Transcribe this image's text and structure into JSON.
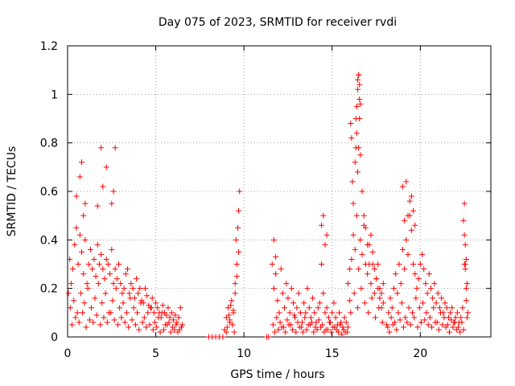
{
  "chart_data": {
    "type": "scatter",
    "title": "Day 075 of 2023, SRMTID for receiver rvdi",
    "xlabel": "GPS time / hours",
    "ylabel": "SRMTID / TECUs",
    "xlim": [
      0,
      24
    ],
    "ylim": [
      0,
      1.2
    ],
    "x_ticks": [
      0,
      5,
      10,
      15,
      20
    ],
    "x_tick_labels": [
      "0",
      "5",
      "10",
      "15",
      "20"
    ],
    "y_ticks": [
      0,
      0.2,
      0.4,
      0.6,
      0.8,
      1,
      1.2
    ],
    "y_tick_labels": [
      "0",
      "0.2",
      "0.4",
      "0.6",
      "0.8",
      "1",
      "1.2"
    ],
    "grid": true,
    "marker": "plus",
    "marker_color": "#ff0000",
    "series": [
      {
        "name": "rvdi",
        "x": [
          0.05,
          0.12,
          0.2,
          0.3,
          0.4,
          0.5,
          0.6,
          0.7,
          0.8,
          0.9,
          1.0,
          1.1,
          1.2,
          1.3,
          1.4,
          1.5,
          1.6,
          1.7,
          1.8,
          1.9,
          2.0,
          2.1,
          2.2,
          2.3,
          2.4,
          2.5,
          2.6,
          2.7,
          2.8,
          2.9,
          3.0,
          3.1,
          3.2,
          3.3,
          3.4,
          3.5,
          3.6,
          3.7,
          3.8,
          3.9,
          4.0,
          4.1,
          4.2,
          4.3,
          4.4,
          4.5,
          4.6,
          4.7,
          4.8,
          4.9,
          5.0,
          5.1,
          5.2,
          5.3,
          5.4,
          5.5,
          5.6,
          5.7,
          5.8,
          5.9,
          6.0,
          6.1,
          6.2,
          6.3,
          6.4,
          6.5,
          0.15,
          0.35,
          0.55,
          0.75,
          0.95,
          1.15,
          1.35,
          1.55,
          1.75,
          1.95,
          2.15,
          2.35,
          2.55,
          2.75,
          2.95,
          3.15,
          3.35,
          3.55,
          3.75,
          3.95,
          4.15,
          4.35,
          4.55,
          4.75,
          4.95,
          5.15,
          5.35,
          5.55,
          5.75,
          5.95,
          6.15,
          6.35,
          0.25,
          0.45,
          0.65,
          0.85,
          1.05,
          1.25,
          1.45,
          1.65,
          1.85,
          2.05,
          2.25,
          2.45,
          2.65,
          2.85,
          3.05,
          3.25,
          3.45,
          3.65,
          3.85,
          4.05,
          4.25,
          4.45,
          4.65,
          4.85,
          5.05,
          5.25,
          5.45,
          5.65,
          5.85,
          6.05,
          6.25,
          6.45,
          0.5,
          0.8,
          1.0,
          1.9,
          2.0,
          2.2,
          2.5,
          2.7,
          0.7,
          0.9,
          1.7,
          2.6,
          8.0,
          8.2,
          8.4,
          8.6,
          8.8,
          8.9,
          9.0,
          9.1,
          9.2,
          9.3,
          9.4,
          9.5,
          9.6,
          9.7,
          9.65,
          9.7,
          9.75,
          9.6,
          9.5,
          9.55,
          9.05,
          9.15,
          9.25,
          9.35,
          9.45,
          9.0,
          9.2,
          9.4,
          11.3,
          11.4,
          11.6,
          11.7,
          11.8,
          11.9,
          12.0,
          12.1,
          12.2,
          12.3,
          12.4,
          12.5,
          12.6,
          12.7,
          12.8,
          12.9,
          13.0,
          13.1,
          13.2,
          13.3,
          13.4,
          13.5,
          13.6,
          13.7,
          13.8,
          13.9,
          14.0,
          14.1,
          14.2,
          14.3,
          14.4,
          14.5,
          14.6,
          14.7,
          14.8,
          14.9,
          15.0,
          15.1,
          15.2,
          15.3,
          15.4,
          15.5,
          15.6,
          15.7,
          15.8,
          15.9,
          11.65,
          11.85,
          12.05,
          12.25,
          12.45,
          12.65,
          12.85,
          13.05,
          13.25,
          13.45,
          13.65,
          13.85,
          14.05,
          14.25,
          14.45,
          14.65,
          14.85,
          15.05,
          15.25,
          15.45,
          15.65,
          15.85,
          11.75,
          11.95,
          12.15,
          12.35,
          12.55,
          12.75,
          12.95,
          13.15,
          13.35,
          13.55,
          13.75,
          13.95,
          14.15,
          14.35,
          14.55,
          14.75,
          14.95,
          15.15,
          15.35,
          15.55,
          15.75,
          11.7,
          11.8,
          14.4,
          14.5,
          14.6,
          14.7,
          15.9,
          16.0,
          16.05,
          16.1,
          16.15,
          16.2,
          16.3,
          16.35,
          16.4,
          16.45,
          16.5,
          16.55,
          16.6,
          16.7,
          16.8,
          16.9,
          17.0,
          17.1,
          17.2,
          17.3,
          17.4,
          17.5,
          17.6,
          17.7,
          17.8,
          17.9,
          16.0,
          16.1,
          16.2,
          16.3,
          16.4,
          16.5,
          16.6,
          16.7,
          16.8,
          16.9,
          17.0,
          17.1,
          17.2,
          17.3,
          17.4,
          17.5,
          17.6,
          17.7,
          17.8,
          17.9,
          16.05,
          16.25,
          16.45,
          16.65,
          16.85,
          17.05,
          17.25,
          17.45,
          17.65,
          17.85,
          16.45,
          16.5,
          16.55,
          16.4,
          16.35,
          16.5,
          16.45,
          16.55,
          16.6,
          18.1,
          18.2,
          18.3,
          18.4,
          18.5,
          18.6,
          18.7,
          18.8,
          18.9,
          19.0,
          19.1,
          19.2,
          19.3,
          19.4,
          19.5,
          19.6,
          19.7,
          19.8,
          19.9,
          20.0,
          20.1,
          20.2,
          20.3,
          20.4,
          20.5,
          20.6,
          20.7,
          20.8,
          20.9,
          21.0,
          21.1,
          21.2,
          21.3,
          21.4,
          21.5,
          21.6,
          21.7,
          21.8,
          21.9,
          22.0,
          22.1,
          22.2,
          22.3,
          22.4,
          22.5,
          22.6,
          22.7,
          18.15,
          18.35,
          18.55,
          18.75,
          18.95,
          19.15,
          19.35,
          19.55,
          19.75,
          19.95,
          20.15,
          20.35,
          20.55,
          20.75,
          20.95,
          21.15,
          21.35,
          21.55,
          21.75,
          21.95,
          22.15,
          22.35,
          22.55,
          18.25,
          18.45,
          18.65,
          18.85,
          19.05,
          19.25,
          19.45,
          19.65,
          19.85,
          20.05,
          20.25,
          20.45,
          20.65,
          20.85,
          21.05,
          21.25,
          21.45,
          21.65,
          21.85,
          22.05,
          22.25,
          22.45,
          22.65,
          19.0,
          19.2,
          19.4,
          19.5,
          19.6,
          19.7,
          19.1,
          19.3,
          22.45,
          22.5,
          22.55,
          22.6,
          22.5,
          22.55,
          22.6,
          22.65
        ],
        "y": [
          0.18,
          0.32,
          0.22,
          0.28,
          0.38,
          0.45,
          0.3,
          0.42,
          0.35,
          0.26,
          0.4,
          0.22,
          0.3,
          0.36,
          0.28,
          0.32,
          0.25,
          0.38,
          0.3,
          0.34,
          0.28,
          0.24,
          0.32,
          0.3,
          0.26,
          0.36,
          0.22,
          0.28,
          0.24,
          0.3,
          0.22,
          0.18,
          0.2,
          0.26,
          0.28,
          0.18,
          0.22,
          0.2,
          0.16,
          0.24,
          0.18,
          0.2,
          0.15,
          0.14,
          0.2,
          0.17,
          0.13,
          0.12,
          0.16,
          0.1,
          0.14,
          0.12,
          0.1,
          0.08,
          0.13,
          0.1,
          0.09,
          0.12,
          0.08,
          0.1,
          0.07,
          0.09,
          0.06,
          0.08,
          0.12,
          0.05,
          0.12,
          0.15,
          0.1,
          0.18,
          0.14,
          0.2,
          0.12,
          0.16,
          0.22,
          0.14,
          0.18,
          0.1,
          0.15,
          0.2,
          0.12,
          0.14,
          0.1,
          0.16,
          0.12,
          0.1,
          0.14,
          0.08,
          0.1,
          0.12,
          0.06,
          0.08,
          0.1,
          0.05,
          0.06,
          0.04,
          0.05,
          0.03,
          0.05,
          0.08,
          0.06,
          0.1,
          0.04,
          0.07,
          0.06,
          0.09,
          0.05,
          0.08,
          0.06,
          0.1,
          0.07,
          0.05,
          0.08,
          0.06,
          0.04,
          0.07,
          0.05,
          0.03,
          0.06,
          0.04,
          0.05,
          0.03,
          0.04,
          0.02,
          0.03,
          0.05,
          0.02,
          0.03,
          0.02,
          0.04,
          0.58,
          0.72,
          0.55,
          0.78,
          0.62,
          0.7,
          0.55,
          0.78,
          0.66,
          0.5,
          0.54,
          0.6,
          0.0,
          0.0,
          0.0,
          0.0,
          0.0,
          0.03,
          0.08,
          0.12,
          0.06,
          0.15,
          0.1,
          0.18,
          0.25,
          0.35,
          0.45,
          0.52,
          0.6,
          0.3,
          0.22,
          0.4,
          0.04,
          0.09,
          0.13,
          0.05,
          0.02,
          0.02,
          0.07,
          0.11,
          0.0,
          0.0,
          0.3,
          0.2,
          0.26,
          0.15,
          0.1,
          0.28,
          0.18,
          0.12,
          0.22,
          0.16,
          0.1,
          0.2,
          0.14,
          0.08,
          0.12,
          0.18,
          0.1,
          0.06,
          0.14,
          0.1,
          0.2,
          0.12,
          0.08,
          0.16,
          0.1,
          0.06,
          0.12,
          0.14,
          0.3,
          0.18,
          0.1,
          0.12,
          0.08,
          0.06,
          0.1,
          0.14,
          0.08,
          0.05,
          0.1,
          0.06,
          0.04,
          0.08,
          0.06,
          0.04,
          0.05,
          0.08,
          0.06,
          0.04,
          0.07,
          0.05,
          0.09,
          0.06,
          0.04,
          0.08,
          0.05,
          0.06,
          0.04,
          0.07,
          0.05,
          0.03,
          0.06,
          0.04,
          0.03,
          0.05,
          0.03,
          0.02,
          0.02,
          0.03,
          0.04,
          0.02,
          0.05,
          0.03,
          0.02,
          0.04,
          0.02,
          0.03,
          0.05,
          0.02,
          0.03,
          0.04,
          0.02,
          0.03,
          0.02,
          0.04,
          0.02,
          0.01,
          0.02,
          0.4,
          0.33,
          0.46,
          0.5,
          0.38,
          0.42,
          0.22,
          0.28,
          0.88,
          0.82,
          0.64,
          0.55,
          0.72,
          0.78,
          0.95,
          1.02,
          1.08,
          0.9,
          0.75,
          0.6,
          0.5,
          0.45,
          0.38,
          0.3,
          0.42,
          0.35,
          0.28,
          0.24,
          0.3,
          0.2,
          0.18,
          0.22,
          0.15,
          0.32,
          0.42,
          0.36,
          0.5,
          0.28,
          0.4,
          0.34,
          0.46,
          0.3,
          0.26,
          0.38,
          0.22,
          0.3,
          0.18,
          0.24,
          0.2,
          0.16,
          0.12,
          0.14,
          0.1,
          0.18,
          0.12,
          0.2,
          0.14,
          0.1,
          0.16,
          0.08,
          0.12,
          0.06,
          1.06,
          1.08,
          0.98,
          0.84,
          0.9,
          0.78,
          0.68,
          1.04,
          0.96,
          0.05,
          0.1,
          0.16,
          0.12,
          0.2,
          0.26,
          0.18,
          0.3,
          0.22,
          0.36,
          0.28,
          0.4,
          0.34,
          0.5,
          0.44,
          0.3,
          0.26,
          0.2,
          0.24,
          0.3,
          0.34,
          0.28,
          0.22,
          0.18,
          0.26,
          0.2,
          0.16,
          0.22,
          0.14,
          0.18,
          0.12,
          0.16,
          0.1,
          0.14,
          0.12,
          0.08,
          0.1,
          0.12,
          0.06,
          0.08,
          0.1,
          0.06,
          0.08,
          0.12,
          0.55,
          0.15,
          0.1,
          0.04,
          0.08,
          0.06,
          0.1,
          0.14,
          0.08,
          0.12,
          0.1,
          0.16,
          0.12,
          0.14,
          0.1,
          0.08,
          0.12,
          0.06,
          0.1,
          0.08,
          0.05,
          0.07,
          0.06,
          0.04,
          0.06,
          0.3,
          0.02,
          0.05,
          0.03,
          0.07,
          0.04,
          0.06,
          0.05,
          0.08,
          0.04,
          0.06,
          0.07,
          0.05,
          0.04,
          0.06,
          0.03,
          0.05,
          0.04,
          0.02,
          0.04,
          0.03,
          0.02,
          0.03,
          0.08,
          0.62,
          0.64,
          0.56,
          0.58,
          0.52,
          0.46,
          0.48,
          0.5,
          0.48,
          0.42,
          0.38,
          0.32,
          0.3,
          0.28,
          0.2,
          0.22
        ]
      }
    ]
  }
}
